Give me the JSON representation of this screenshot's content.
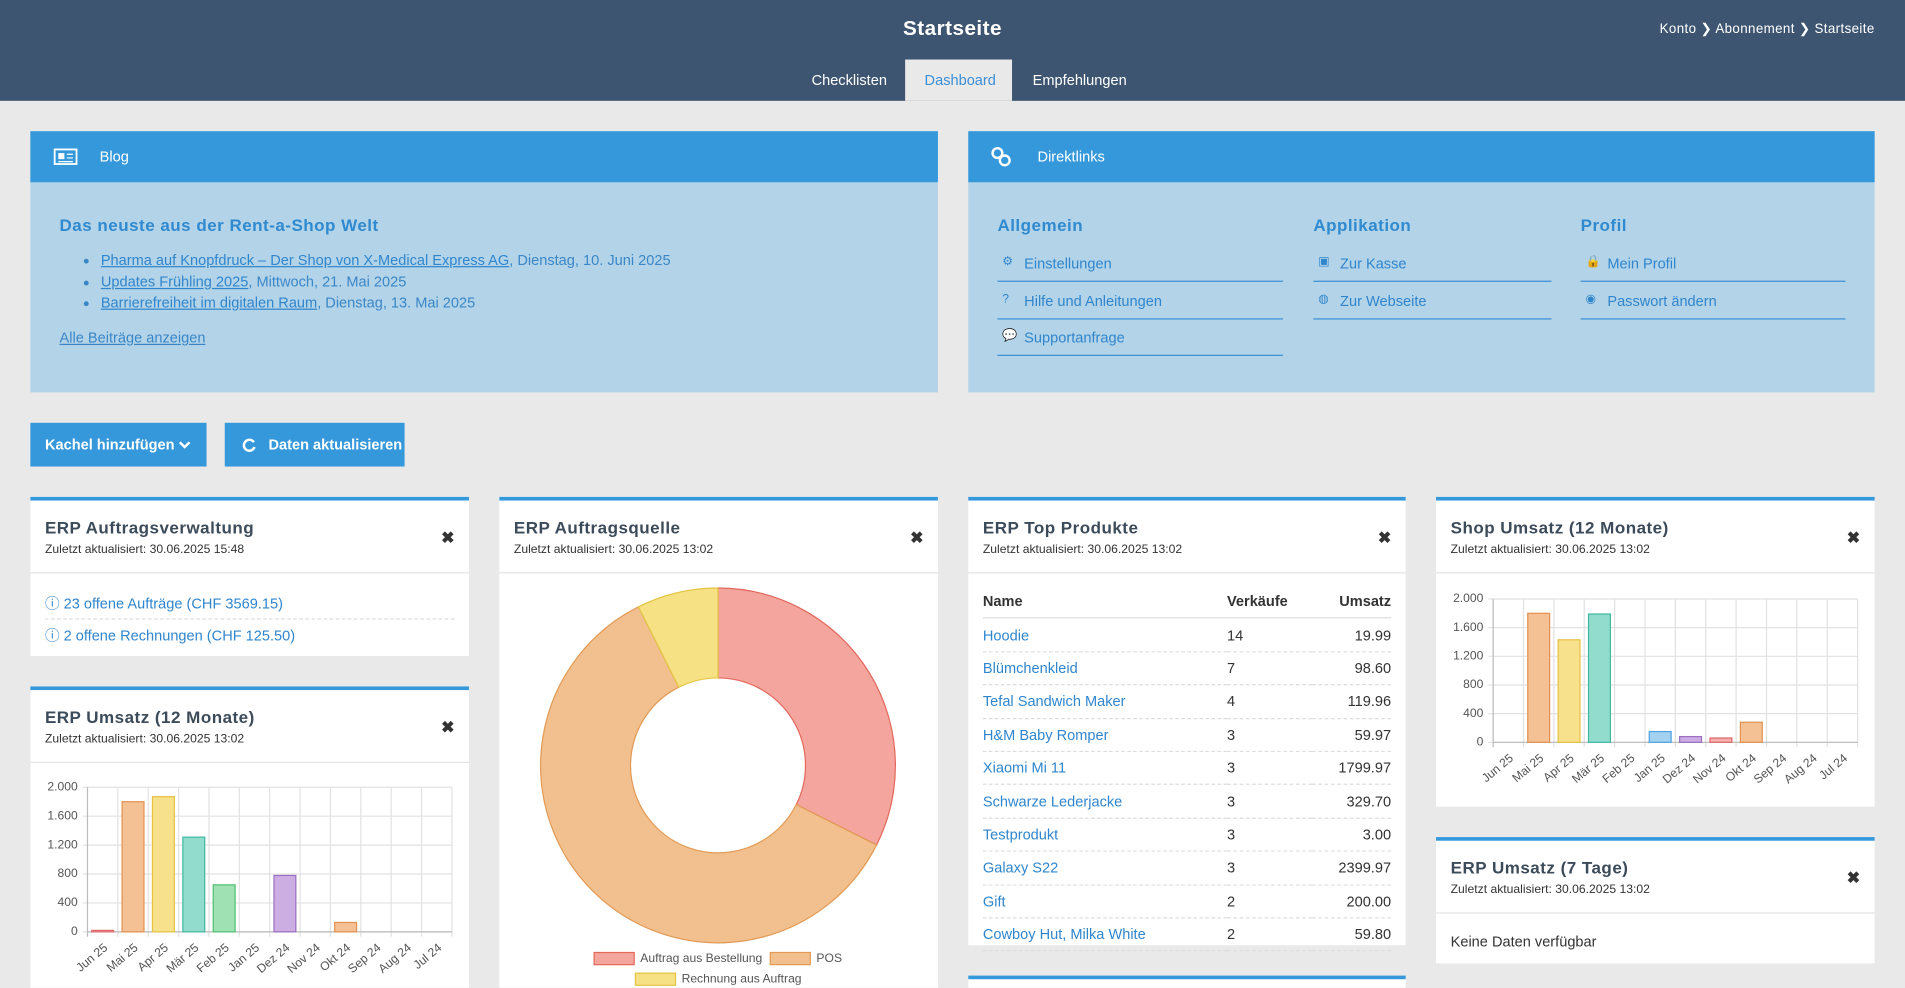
{
  "header": {
    "title": "Startseite",
    "breadcrumb": [
      "Konto",
      "Abonnement",
      "Startseite"
    ],
    "tabs": [
      "Checklisten",
      "Dashboard",
      "Empfehlungen"
    ]
  },
  "blog": {
    "title": "Blog",
    "heading": "Das neuste aus der Rent-a-Shop Welt",
    "posts": [
      {
        "link": "Pharma auf Knopfdruck – Der Shop von X-Medical Express AG",
        "date": ", Dienstag, 10. Juni 2025"
      },
      {
        "link": "Updates Frühling 2025",
        "date": ", Mittwoch, 21. Mai 2025"
      },
      {
        "link": "Barrierefreiheit im digitalen Raum",
        "date": ", Dienstag, 13. Mai 2025"
      }
    ],
    "all_link": "Alle Beiträge anzeigen"
  },
  "direktlinks": {
    "title": "Direktlinks",
    "columns": [
      {
        "heading": "Allgemein",
        "links": [
          "Einstellungen",
          "Hilfe und Anleitungen",
          "Supportanfrage"
        ]
      },
      {
        "heading": "Applikation",
        "links": [
          "Zur Kasse",
          "Zur Webseite"
        ]
      },
      {
        "heading": "Profil",
        "links": [
          "Mein Profil",
          "Passwort ändern"
        ]
      }
    ]
  },
  "buttons": [
    "Kachel hinzufügen",
    "Daten aktualisieren"
  ],
  "widgets": {
    "auftragsverwaltung": {
      "title": "ERP Auftragsverwaltung",
      "updated": "Zuletzt aktualisiert: 30.06.2025 15:48",
      "items": [
        "23 offene Aufträge (CHF 3569.15)",
        "2 offene Rechnungen (CHF 125.50)"
      ]
    },
    "umsatz_12": {
      "title": "ERP Umsatz (12 Monate)",
      "updated": "Zuletzt aktualisiert: 30.06.2025 13:02",
      "chart_data": {
        "type": "bar",
        "categories": [
          "Jun 25",
          "Mai 25",
          "Apr 25",
          "Mär 25",
          "Feb 25",
          "Jan 25",
          "Dez 24",
          "Nov 24",
          "Okt 24",
          "Sep 24",
          "Aug 24",
          "Jul 24"
        ],
        "values": [
          20,
          1800,
          1870,
          1310,
          650,
          0,
          780,
          0,
          130,
          0,
          0,
          0
        ],
        "colors": [
          "#f6b0b0",
          "#f3c193",
          "#f8e18c",
          "#92dccd",
          "#9fe1b3",
          "#a3d2f1",
          "#cdaee2",
          "#f6b0b0",
          "#f3c193",
          "#f8e18c",
          "#92dccd",
          "#9fe1b3"
        ],
        "border_colors": [
          "#e06868",
          "#e39152",
          "#e6c244",
          "#41b9a1",
          "#4fc173",
          "#4fa2e1",
          "#9b6ec2",
          "#e06868",
          "#e39152",
          "#e6c244",
          "#41b9a1",
          "#4fc173"
        ],
        "ylim": [
          0,
          2000
        ],
        "yticks": [
          0,
          400,
          800,
          {
            "value": 1200,
            "label": "1.200"
          },
          {
            "value": 1600,
            "label": "1.600"
          },
          {
            "value": 2000,
            "label": "2.000"
          }
        ],
        "grid": true
      }
    },
    "auftragsquelle": {
      "title": "ERP Auftragsquelle",
      "updated": "Zuletzt aktualisiert: 30.06.2025 13:02",
      "chart_data": {
        "type": "doughnut",
        "categories": [
          "Auftrag aus Bestellung",
          "POS",
          "Rechnung aus Auftrag"
        ],
        "values": [
          32.4,
          60.2,
          7.4
        ],
        "colors": [
          "#f4a69e",
          "#f2c08e",
          "#f7e185"
        ],
        "border_colors": [
          "#e2685c",
          "#e29a55",
          "#e3c444"
        ]
      }
    },
    "top_produkte": {
      "title": "ERP Top Produkte",
      "updated": "Zuletzt aktualisiert: 30.06.2025 13:02",
      "table": {
        "columns": [
          "Name",
          "Verkäufe",
          "Umsatz"
        ],
        "rows": [
          [
            "Hoodie",
            "14",
            "19.99"
          ],
          [
            "Blümchenkleid",
            "7",
            "98.60"
          ],
          [
            "Tefal Sandwich Maker",
            "4",
            "119.96"
          ],
          [
            "H&M Baby Romper",
            "3",
            "59.97"
          ],
          [
            "Xiaomi Mi 11",
            "3",
            "1799.97"
          ],
          [
            "Schwarze Lederjacke",
            "3",
            "329.70"
          ],
          [
            "Testprodukt",
            "3",
            "3.00"
          ],
          [
            "Galaxy S22",
            "3",
            "2399.97"
          ],
          [
            "Gift",
            "2",
            "200.00"
          ],
          [
            "Cowboy Hut, Milka White",
            "2",
            "59.80"
          ]
        ]
      }
    },
    "shop_umsatz": {
      "title": "Shop Umsatz (12 Monate)",
      "updated": "Zuletzt aktualisiert: 30.06.2025 13:02",
      "chart_data": {
        "type": "bar",
        "categories": [
          "Jun 25",
          "Mai 25",
          "Apr 25",
          "Mär 25",
          "Feb 25",
          "Jan 25",
          "Dez 24",
          "Nov 24",
          "Okt 24",
          "Sep 24",
          "Aug 24",
          "Jul 24"
        ],
        "values": [
          0,
          1800,
          1430,
          1790,
          0,
          150,
          80,
          60,
          280,
          0,
          0,
          0
        ],
        "colors": [
          "#f6b0b0",
          "#f3c193",
          "#f8e18c",
          "#92dccd",
          "#9fe1b3",
          "#a3d2f1",
          "#cdaee2",
          "#f6b0b0",
          "#f3c193",
          "#f8e18c",
          "#92dccd",
          "#9fe1b3"
        ],
        "border_colors": [
          "#e06868",
          "#e39152",
          "#e6c244",
          "#41b9a1",
          "#4fc173",
          "#4fa2e1",
          "#9b6ec2",
          "#e06868",
          "#e39152",
          "#e6c244",
          "#41b9a1",
          "#4fc173"
        ],
        "ylim": [
          0,
          2000
        ],
        "yticks": [
          0,
          400,
          800,
          {
            "value": 1200,
            "label": "1.200"
          },
          {
            "value": 1600,
            "label": "1.600"
          },
          {
            "value": 2000,
            "label": "2.000"
          }
        ],
        "grid": true
      }
    },
    "umsatz_7": {
      "title": "ERP Umsatz (7 Tage)",
      "updated": "Zuletzt aktualisiert: 30.06.2025 13:02",
      "message": "Keine Daten verfügbar"
    }
  }
}
